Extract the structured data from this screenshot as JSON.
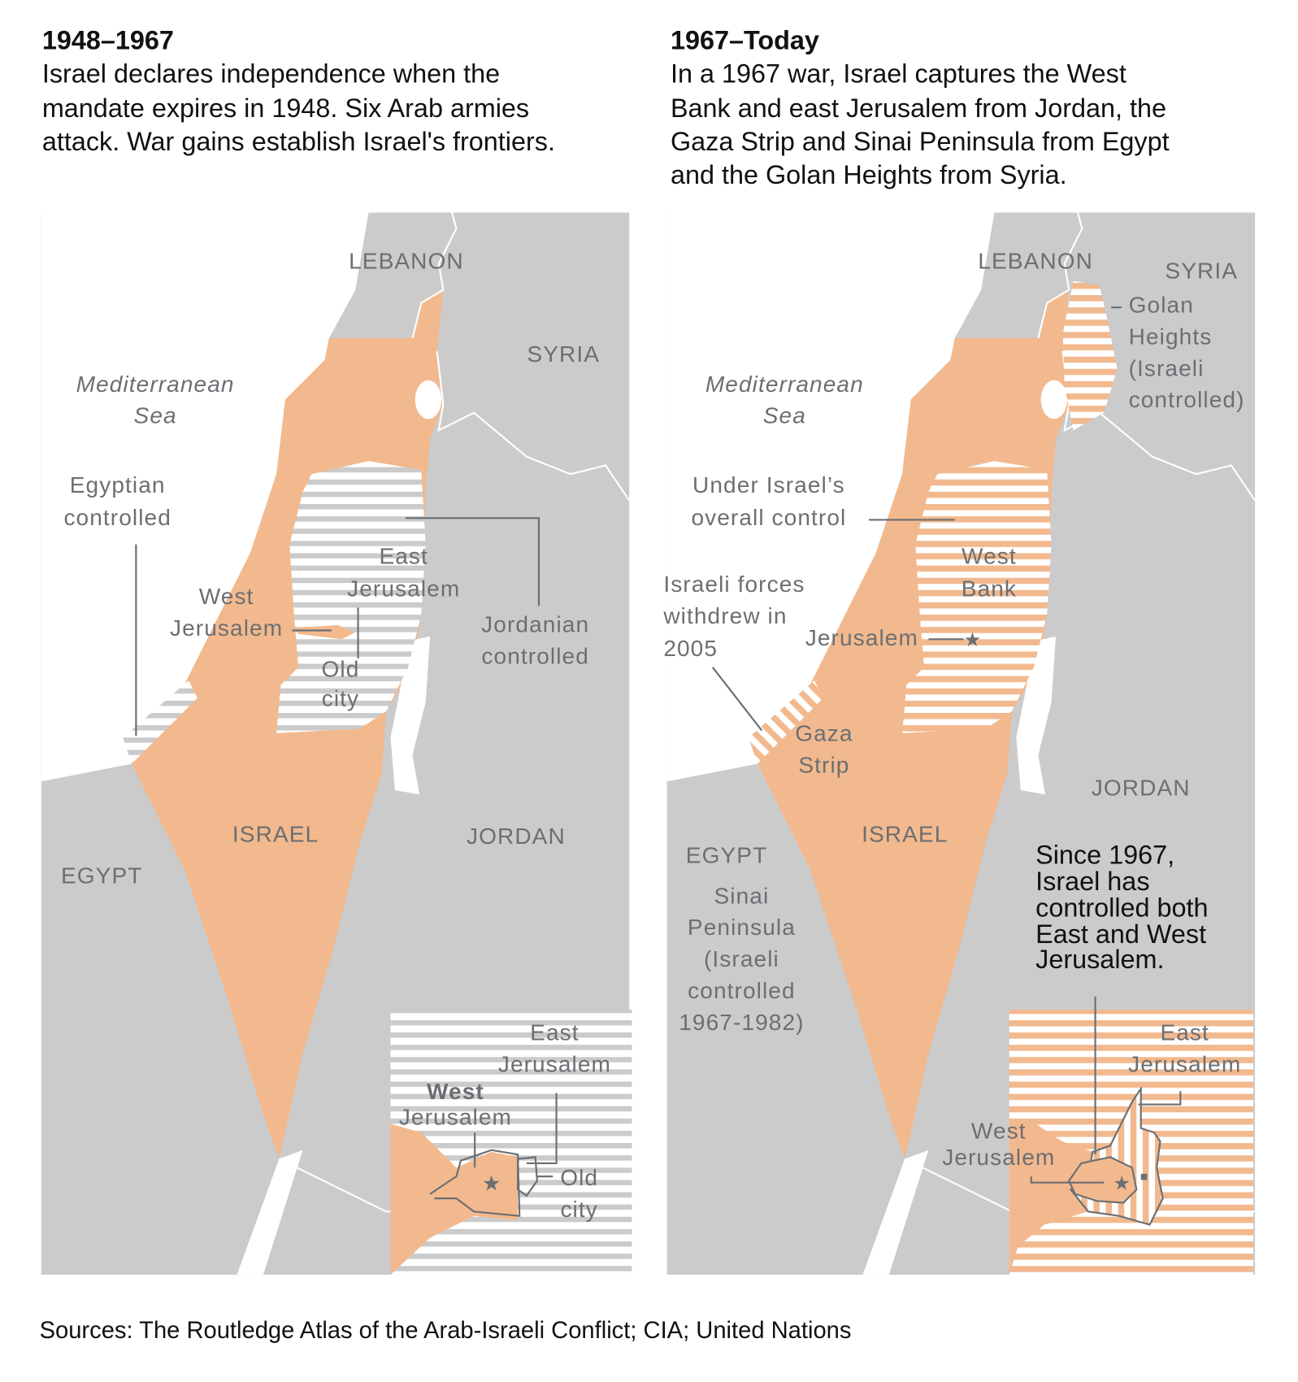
{
  "colors": {
    "israel": "#f2b98e",
    "land": "#cbcbcb",
    "label": "#6b6f73",
    "border": "#ffffff"
  },
  "left": {
    "title": "1948–1967",
    "body": [
      "Israel declares independence when the",
      "mandate expires in 1948. Six Arab armies",
      "attack. War gains establish Israel's frontiers."
    ],
    "labels": {
      "lebanon": "LEBANON",
      "syria": "SYRIA",
      "sea": [
        "Mediterranean",
        "Sea"
      ],
      "egyptian": [
        "Egyptian",
        "controlled"
      ],
      "east_jerusalem": [
        "East",
        "Jerusalem"
      ],
      "west_jerusalem": [
        "West",
        "Jerusalem"
      ],
      "jordanian": [
        "Jordanian",
        "controlled"
      ],
      "old_city": [
        "Old",
        "city"
      ],
      "israel": "ISRAEL",
      "jordan": "JORDAN",
      "egypt": "EGYPT"
    },
    "inset": {
      "east": [
        "East",
        "Jerusalem"
      ],
      "west": [
        "West",
        "Jerusalem"
      ],
      "old_city": [
        "Old",
        "city"
      ]
    }
  },
  "right": {
    "title": "1967–Today",
    "body": [
      "In a 1967 war, Israel captures the West",
      "Bank and east Jerusalem from Jordan, the",
      "Gaza Strip and Sinai Peninsula from Egypt",
      "and the Golan Heights from Syria."
    ],
    "labels": {
      "lebanon": "LEBANON",
      "syria": "SYRIA",
      "golan": [
        "Golan",
        "Heights",
        "(Israeli",
        "controlled)"
      ],
      "sea": [
        "Mediterranean",
        "Sea"
      ],
      "overall": [
        "Under Israel’s",
        "overall control"
      ],
      "west_bank": [
        "West",
        "Bank"
      ],
      "withdrew": [
        "Israeli forces",
        "withdrew in",
        "2005"
      ],
      "jerusalem": "Jerusalem",
      "gaza": [
        "Gaza",
        "Strip"
      ],
      "jordan": "JORDAN",
      "israel": "ISRAEL",
      "egypt": "EGYPT",
      "sinai": [
        "Sinai",
        "Peninsula",
        "(Israeli",
        "controlled",
        "1967-1982)"
      ]
    },
    "note": [
      "Since 1967,",
      "Israel has",
      "controlled both",
      "East and West",
      "Jerusalem."
    ],
    "inset": {
      "east": [
        "East",
        "Jerusalem"
      ],
      "west": [
        "West",
        "Jerusalem"
      ]
    }
  },
  "sources": "Sources: The Routledge Atlas of the Arab-Israeli Conflict; CIA; United Nations"
}
